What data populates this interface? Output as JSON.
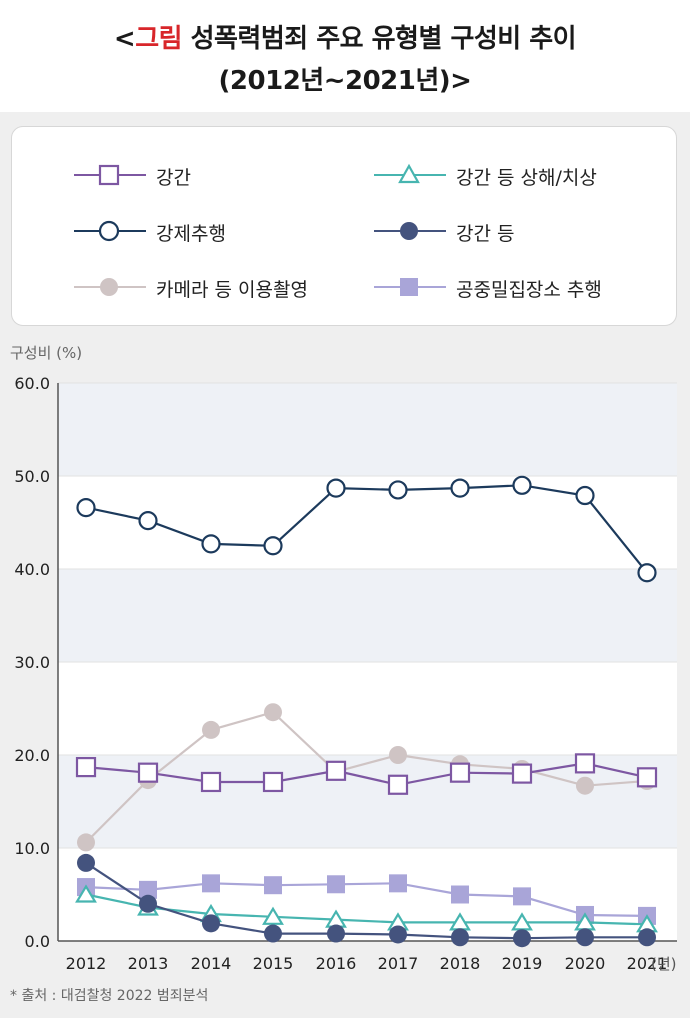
{
  "title": {
    "bracket_open": "<",
    "accent": "그림",
    "line1_rest": " 성폭력범죄 주요 유형별 구성비 추이",
    "line2": "(2012년~2021년)>"
  },
  "source": "* 출처 : 대검찰청 2022 범죄분석",
  "chart_data": {
    "type": "line",
    "ylabel": "구성비 (%)",
    "x_unit": "(년)",
    "ylim": [
      0,
      60
    ],
    "yticks": [
      "0.0",
      "10.0",
      "20.0",
      "30.0",
      "40.0",
      "50.0",
      "60.0"
    ],
    "categories": [
      "2012",
      "2013",
      "2014",
      "2015",
      "2016",
      "2017",
      "2018",
      "2019",
      "2020",
      "2021"
    ],
    "series": [
      {
        "name": "카메라 등 이용촬영",
        "marker": "circle-filled",
        "color": "#cfc4c4",
        "values": [
          10.6,
          17.3,
          22.7,
          24.6,
          18.2,
          20.0,
          19.0,
          18.5,
          16.7,
          17.2
        ]
      },
      {
        "name": "공중밀집장소 추행",
        "marker": "square-filled",
        "color": "#a9a5d8",
        "values": [
          5.8,
          5.5,
          6.2,
          6.0,
          6.1,
          6.2,
          5.0,
          4.8,
          2.8,
          2.7
        ]
      },
      {
        "name": "강간 등 상해/치상",
        "marker": "triangle-open",
        "color": "#47b5b0",
        "values": [
          5.0,
          3.6,
          2.9,
          2.6,
          2.3,
          2.0,
          2.0,
          2.0,
          2.0,
          1.8
        ]
      },
      {
        "name": "강간 등",
        "marker": "circle-filled",
        "color": "#44537e",
        "values": [
          8.4,
          4.0,
          1.9,
          0.8,
          0.8,
          0.7,
          0.4,
          0.3,
          0.4,
          0.4
        ]
      },
      {
        "name": "강간",
        "marker": "square-open",
        "color": "#7d57a2",
        "values": [
          18.7,
          18.1,
          17.1,
          17.1,
          18.3,
          16.8,
          18.1,
          18.0,
          19.1,
          17.6
        ]
      },
      {
        "name": "강제추행",
        "marker": "circle-open",
        "color": "#1c3a5c",
        "values": [
          46.6,
          45.2,
          42.7,
          42.5,
          48.7,
          48.5,
          48.7,
          49.0,
          47.9,
          39.6
        ]
      }
    ],
    "legend": [
      {
        "name": "강간",
        "marker": "square-open",
        "color": "#7d57a2"
      },
      {
        "name": "강간 등 상해/치상",
        "marker": "triangle-open",
        "color": "#47b5b0"
      },
      {
        "name": "강제추행",
        "marker": "circle-open",
        "color": "#1c3a5c"
      },
      {
        "name": "강간 등",
        "marker": "circle-filled",
        "color": "#44537e"
      },
      {
        "name": "카메라 등 이용촬영",
        "marker": "circle-filled",
        "color": "#cfc4c4"
      },
      {
        "name": "공중밀집장소 추행",
        "marker": "square-filled",
        "color": "#a9a5d8"
      }
    ]
  }
}
